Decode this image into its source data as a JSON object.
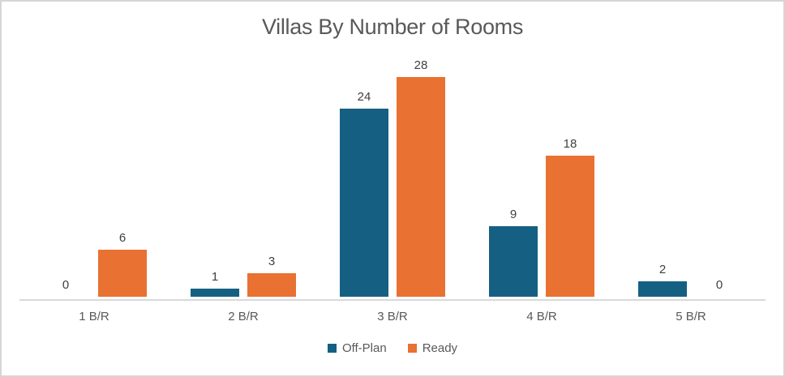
{
  "chart_data": {
    "type": "bar",
    "title": "Villas By Number of Rooms",
    "categories": [
      "1 B/R",
      "2 B/R",
      "3 B/R",
      "4 B/R",
      "5 B/R"
    ],
    "series": [
      {
        "name": "Off-Plan",
        "color": "#156082",
        "values": [
          0,
          1,
          24,
          9,
          2
        ]
      },
      {
        "name": "Ready",
        "color": "#E97132",
        "values": [
          6,
          3,
          28,
          18,
          0
        ]
      }
    ],
    "ylim": [
      0,
      30
    ],
    "grid": false,
    "data_labels": true,
    "legend_position": "bottom",
    "colors": {
      "title_text": "#595959",
      "axis_text": "#595959",
      "data_label_text": "#404040",
      "axis_line": "#D9D9D9",
      "frame_border": "#D6D6D6",
      "background": "#FFFFFF"
    }
  }
}
